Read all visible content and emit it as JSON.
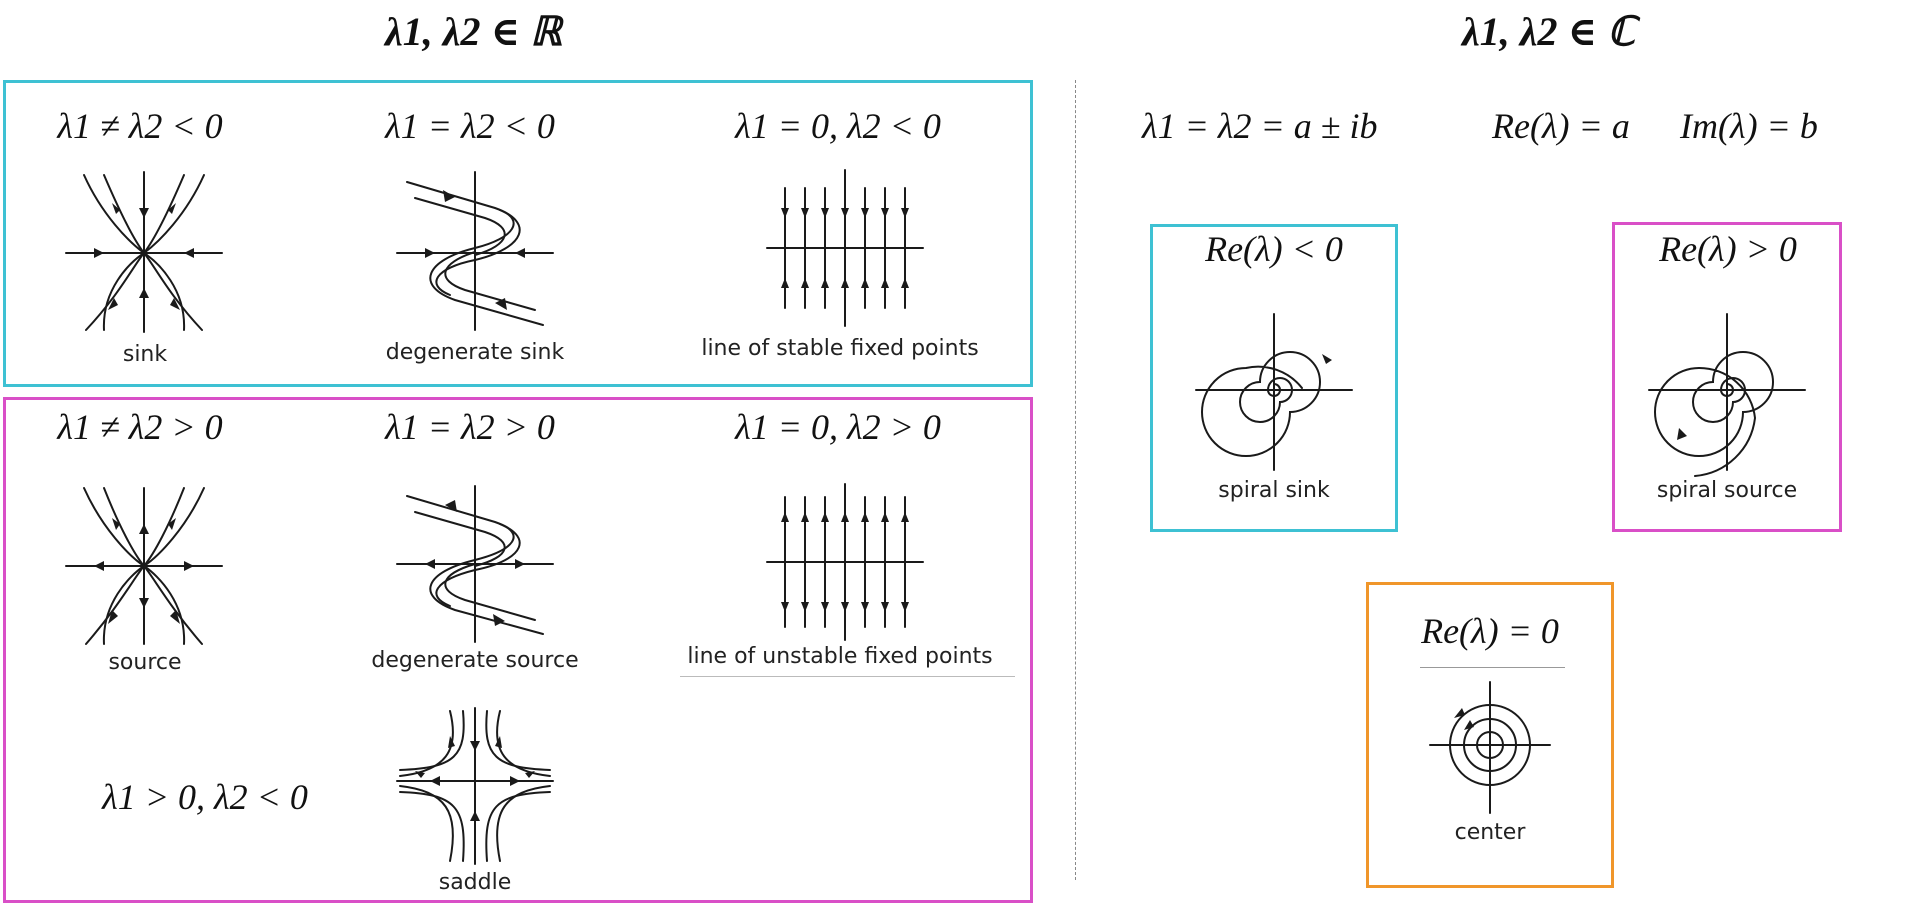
{
  "headings": {
    "real": "λ1, λ2 ∈ ℝ",
    "complex": "λ1, λ2 ∈ ℂ"
  },
  "complex_formula": {
    "conjugate": "λ1 = λ2 = a ± ib",
    "real_part": "Re(λ) = a",
    "imag_part": "Im(λ) = b"
  },
  "stable_group": {
    "border_color": "#3ec1d3",
    "items": [
      {
        "condition": "λ1 ≠ λ2 < 0",
        "caption": "sink"
      },
      {
        "condition": "λ1 = λ2 < 0",
        "caption": "degenerate sink"
      },
      {
        "condition": "λ1 = 0, λ2 < 0",
        "caption": "line of stable fixed points"
      }
    ]
  },
  "unstable_group": {
    "border_color": "#d94fc7",
    "items": [
      {
        "condition": "λ1 ≠ λ2 > 0",
        "caption": "source"
      },
      {
        "condition": "λ1 = λ2 > 0",
        "caption": "degenerate source"
      },
      {
        "condition": "λ1 = 0, λ2 > 0",
        "caption": "line of unstable fixed points"
      },
      {
        "condition": "λ1 > 0, λ2 < 0",
        "caption": "saddle"
      }
    ]
  },
  "complex_cases": [
    {
      "condition": "Re(λ) < 0",
      "caption": "spiral sink",
      "border_color": "#3ec1d3"
    },
    {
      "condition": "Re(λ) > 0",
      "caption": "spiral source",
      "border_color": "#d94fc7"
    },
    {
      "condition": "Re(λ) = 0",
      "caption": "center",
      "border_color": "#f0962a"
    }
  ],
  "icons": [
    "sink-portrait",
    "degenerate-sink-portrait",
    "stable-line-portrait",
    "source-portrait",
    "degenerate-source-portrait",
    "unstable-line-portrait",
    "saddle-portrait",
    "spiral-sink-portrait",
    "spiral-source-portrait",
    "center-portrait"
  ]
}
